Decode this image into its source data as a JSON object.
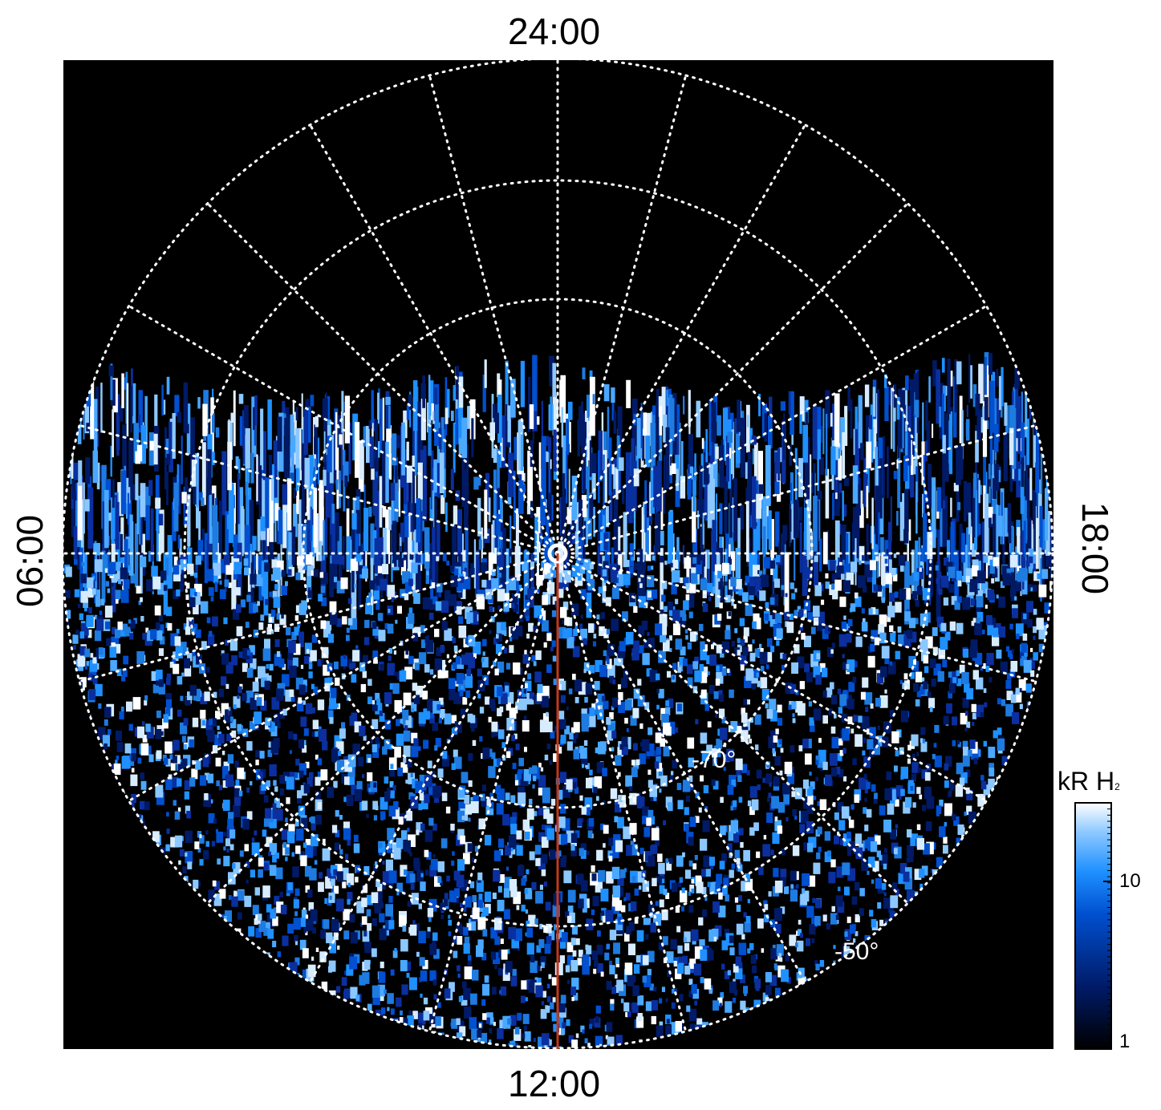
{
  "local_time_labels": {
    "top": "24:00",
    "bottom": "12:00",
    "left": "06:00",
    "right": "18:00"
  },
  "latitude_labels": [
    {
      "text": "-70°"
    },
    {
      "text": "-50°"
    }
  ],
  "colorbar": {
    "title": "kR H",
    "title_subscript": "2",
    "tick_labels": [
      "10",
      "1"
    ],
    "scale": "log",
    "range": [
      1,
      30
    ],
    "colors": [
      "#000000",
      "#001a66",
      "#0050d0",
      "#1e90ff",
      "#8cc8ff",
      "#ffffff"
    ]
  },
  "colors": {
    "background": "#000000",
    "grid": "#ffffff",
    "meridian_line": "#c0391b",
    "emission": "#1e90ff"
  }
}
